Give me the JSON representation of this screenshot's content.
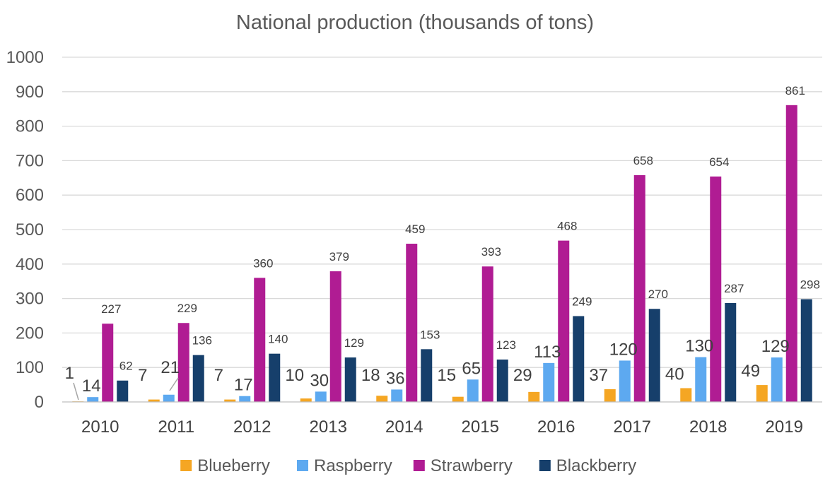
{
  "chart_data": {
    "type": "bar",
    "title": "National production (thousands of tons)",
    "xlabel": "",
    "ylabel": "",
    "ylim": [
      0,
      1000
    ],
    "yticks": [
      0,
      100,
      200,
      300,
      400,
      500,
      600,
      700,
      800,
      900,
      1000
    ],
    "grid": true,
    "legend_position": "bottom",
    "categories": [
      "2010",
      "2011",
      "2012",
      "2013",
      "2014",
      "2015",
      "2016",
      "2017",
      "2018",
      "2019"
    ],
    "series": [
      {
        "name": "Blueberry",
        "color": "#f5a623",
        "values": [
          1,
          7,
          7,
          10,
          18,
          15,
          29,
          37,
          40,
          49
        ]
      },
      {
        "name": "Raspberry",
        "color": "#5da9f0",
        "values": [
          14,
          21,
          17,
          30,
          36,
          65,
          113,
          120,
          130,
          129
        ]
      },
      {
        "name": "Strawberry",
        "color": "#b01c93",
        "values": [
          227,
          229,
          360,
          379,
          459,
          393,
          468,
          658,
          654,
          861
        ]
      },
      {
        "name": "Blackberry",
        "color": "#163f6b",
        "values": [
          62,
          136,
          140,
          129,
          153,
          123,
          249,
          270,
          287,
          298
        ]
      }
    ]
  }
}
